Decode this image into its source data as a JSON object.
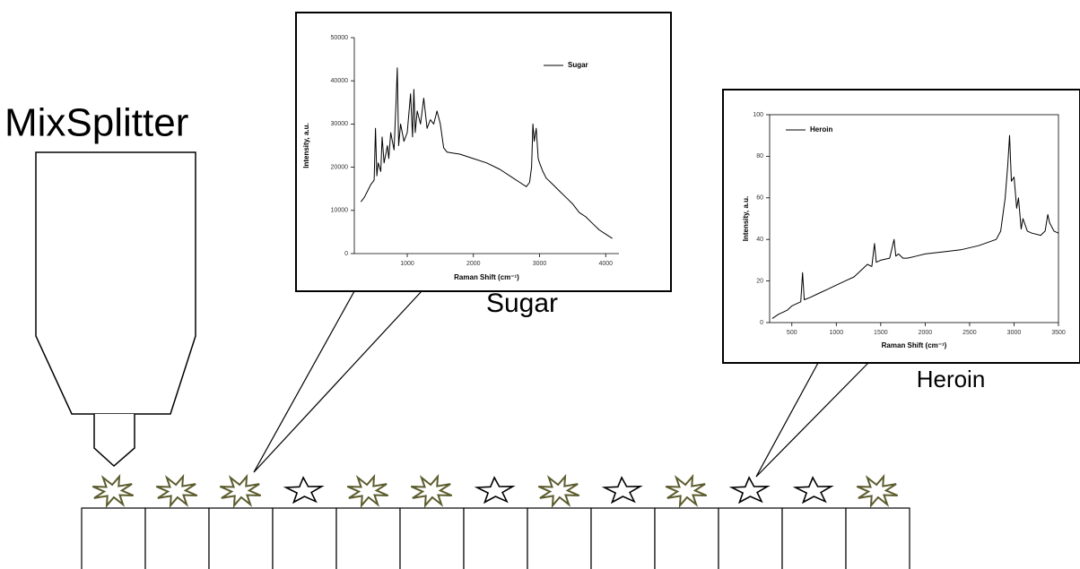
{
  "title": "MixSplitter",
  "labels": {
    "sugar": "Sugar",
    "heroin": "Heroin"
  },
  "chart_data": [
    {
      "type": "line",
      "xlabel": "Raman Shift (cm⁻¹)",
      "ylabel": "Intensity, a.u.",
      "x": [
        300,
        350,
        400,
        450,
        500,
        520,
        540,
        560,
        600,
        620,
        650,
        700,
        720,
        750,
        800,
        830,
        850,
        870,
        900,
        950,
        1000,
        1050,
        1080,
        1100,
        1120,
        1150,
        1200,
        1250,
        1300,
        1350,
        1400,
        1450,
        1500,
        1550,
        1600,
        1800,
        2000,
        2200,
        2400,
        2600,
        2700,
        2800,
        2850,
        2880,
        2900,
        2920,
        2950,
        2980,
        3000,
        3050,
        3100,
        3200,
        3300,
        3400,
        3500,
        3550,
        3600,
        3700,
        3800,
        3900,
        4000,
        4100
      ],
      "series": [
        {
          "name": "Sugar",
          "color": "#000000",
          "values": [
            12000,
            13000,
            14500,
            16000,
            17000,
            29000,
            18000,
            21000,
            19000,
            27000,
            21000,
            25000,
            22000,
            28000,
            24000,
            35000,
            43000,
            25000,
            30000,
            26000,
            28000,
            37000,
            27000,
            38000,
            28000,
            33000,
            30000,
            36000,
            29000,
            31000,
            30000,
            33000,
            30000,
            24500,
            23500,
            23000,
            22000,
            21000,
            19500,
            17500,
            16500,
            15500,
            16500,
            20000,
            30000,
            26000,
            29000,
            22000,
            21000,
            19000,
            17500,
            16000,
            14500,
            13000,
            11500,
            10500,
            9500,
            8500,
            7000,
            5500,
            4500,
            3500
          ]
        }
      ],
      "xlim": [
        200,
        4200
      ],
      "xticks": [
        1000,
        2000,
        3000,
        4000
      ],
      "ylim": [
        0,
        50000
      ],
      "yticks": [
        0,
        10000,
        20000,
        30000,
        40000,
        50000
      ],
      "frame": false
    },
    {
      "type": "line",
      "xlabel": "Raman Shift (cm⁻¹)",
      "ylabel": "Intensity, a.u.",
      "x": [
        280,
        350,
        400,
        450,
        500,
        550,
        600,
        620,
        640,
        700,
        800,
        900,
        1000,
        1100,
        1200,
        1300,
        1350,
        1400,
        1430,
        1450,
        1500,
        1600,
        1650,
        1670,
        1700,
        1750,
        1800,
        1900,
        2000,
        2200,
        2400,
        2600,
        2800,
        2850,
        2900,
        2930,
        2950,
        2970,
        3000,
        3030,
        3050,
        3080,
        3100,
        3150,
        3200,
        3300,
        3350,
        3380,
        3400,
        3450,
        3500
      ],
      "series": [
        {
          "name": "Heroin",
          "color": "#000000",
          "values": [
            2,
            4,
            5,
            6,
            8,
            9,
            10,
            24,
            11,
            12,
            14,
            16,
            18,
            20,
            22,
            26,
            28,
            27,
            38,
            29,
            30,
            31,
            40,
            32,
            33,
            31,
            31,
            32,
            33,
            34,
            35,
            37,
            40,
            44,
            60,
            76,
            90,
            68,
            70,
            55,
            60,
            45,
            50,
            44,
            43,
            42,
            44,
            52,
            48,
            44,
            43
          ]
        }
      ],
      "xlim": [
        250,
        3500
      ],
      "xticks": [
        500,
        1000,
        1500,
        2000,
        2500,
        3000,
        3500
      ],
      "ylim": [
        0,
        100
      ],
      "yticks": [
        0,
        20,
        40,
        60,
        80,
        100
      ],
      "frame": true
    }
  ]
}
